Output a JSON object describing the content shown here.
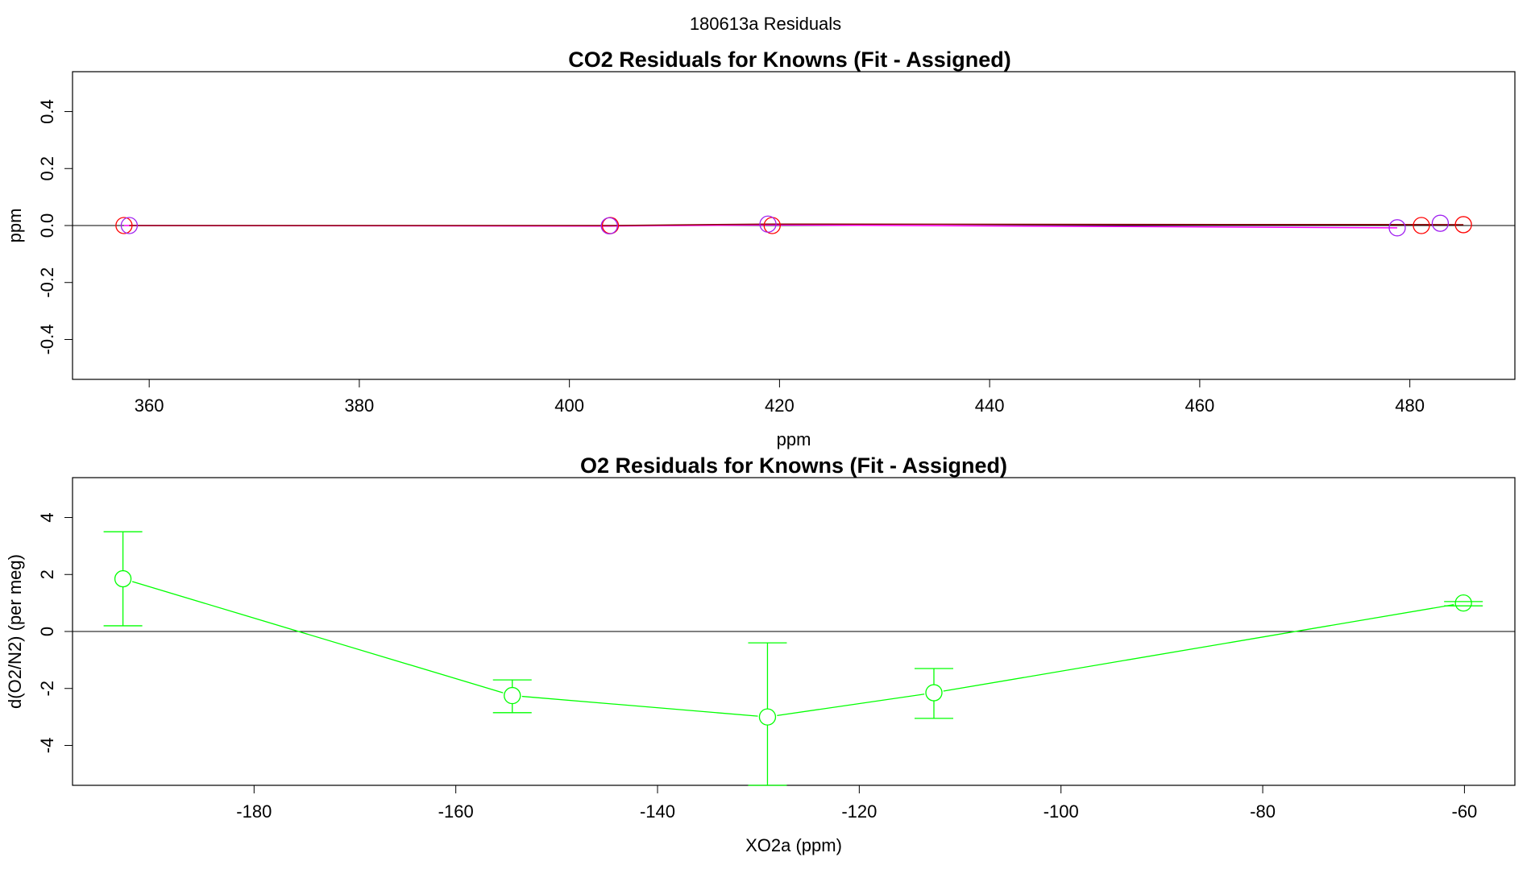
{
  "figure_title": "180613a  Residuals",
  "chart_data": [
    {
      "type": "scatter",
      "title": "CO2 Residuals for Knowns (Fit - Assigned)",
      "xlabel": "ppm",
      "ylabel": "ppm",
      "xlim": [
        352.7,
        490
      ],
      "ylim": [
        -0.54,
        0.54
      ],
      "xticks": [
        360,
        380,
        400,
        420,
        440,
        460,
        480
      ],
      "yticks": [
        -0.4,
        -0.2,
        0.0,
        0.2,
        0.4
      ],
      "ytick_labels": [
        "-0.4",
        "-0.2",
        "0.0",
        "0.2",
        "0.4"
      ],
      "zero_line": true,
      "grid": false,
      "series": [
        {
          "color": "#ff0000",
          "x": [
            357.6,
            403.9,
            419.3,
            481.1,
            485.1
          ],
          "y": [
            0.0,
            0.0,
            0.0,
            0.0,
            0.003
          ]
        },
        {
          "color": "#a020f0",
          "x": [
            358.1,
            403.8,
            418.9,
            478.8,
            482.9
          ],
          "y": [
            0.0,
            -0.001,
            0.005,
            -0.008,
            0.008
          ]
        }
      ],
      "fit_lines": [
        {
          "color": "#ff00ff",
          "x": [
            357.6,
            403.9,
            419.3,
            478.8
          ],
          "y": [
            0.0,
            -0.002,
            0.002,
            -0.008
          ]
        },
        {
          "color": "#8b0000",
          "x": [
            358.1,
            403.8,
            418.9,
            485.1
          ],
          "y": [
            0.0,
            0.0,
            0.005,
            0.003
          ]
        }
      ]
    },
    {
      "type": "line",
      "title": "O2 Residuals for Knowns (Fit - Assigned)",
      "xlabel": "XO2a (ppm)",
      "ylabel": "d(O2/N2) (per meg)",
      "xlim": [
        -198,
        -55
      ],
      "ylim": [
        -5.4,
        5.4
      ],
      "xticks": [
        -180,
        -160,
        -140,
        -120,
        -100,
        -80,
        -60
      ],
      "yticks": [
        -4,
        -2,
        0,
        2,
        4
      ],
      "zero_line": true,
      "grid": false,
      "color": "#00ff00",
      "points": [
        {
          "x": -193,
          "y": 1.85,
          "err_lo": 0.2,
          "err_hi": 3.5
        },
        {
          "x": -154.4,
          "y": -2.25,
          "err_lo": -2.85,
          "err_hi": -1.7
        },
        {
          "x": -129.1,
          "y": -3.0,
          "err_lo": -5.4,
          "err_hi": -0.4
        },
        {
          "x": -112.6,
          "y": -2.15,
          "err_lo": -3.05,
          "err_hi": -1.3
        },
        {
          "x": -60.1,
          "y": 1.0,
          "err_lo": 0.9,
          "err_hi": 1.05
        }
      ]
    }
  ]
}
